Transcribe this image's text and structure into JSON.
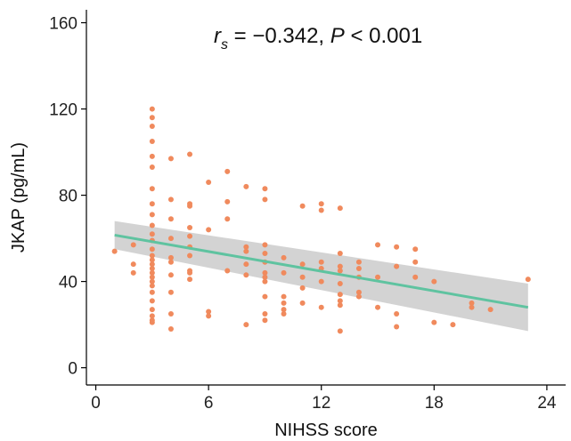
{
  "chart_data": {
    "type": "scatter",
    "title": "",
    "xlabel": "NIHSS score",
    "ylabel": "JKAP (pg/mL)",
    "xlim": [
      -0.5,
      25
    ],
    "ylim": [
      -8,
      166
    ],
    "x_ticks": [
      0,
      6,
      12,
      18,
      24
    ],
    "y_ticks": [
      0,
      40,
      80,
      120,
      160
    ],
    "x_tick_labels": [
      "0",
      "6",
      "12",
      "18",
      "24"
    ],
    "y_tick_labels": [
      "0",
      "40",
      "80",
      "120",
      "160"
    ],
    "grid": false,
    "legend": "none",
    "annotation": {
      "r_symbol": "r",
      "r_subscript": "s",
      "r_value": " = −0.342, ",
      "p_symbol": "P",
      "p_value": " < 0.001"
    },
    "colors": {
      "points": "#F08A5D",
      "fit_line": "#5FC3A0",
      "ci_band": "#D3D3D3",
      "axis": "#000000"
    },
    "fit": {
      "x": [
        1,
        23
      ],
      "y": [
        61.5,
        28
      ],
      "ci_lower": [
        55,
        17
      ],
      "ci_upper": [
        68,
        39
      ]
    },
    "points": [
      {
        "x": 1,
        "y": 54
      },
      {
        "x": 2,
        "y": 57
      },
      {
        "x": 2,
        "y": 48
      },
      {
        "x": 2,
        "y": 44
      },
      {
        "x": 3,
        "y": 120
      },
      {
        "x": 3,
        "y": 116
      },
      {
        "x": 3,
        "y": 112
      },
      {
        "x": 3,
        "y": 105
      },
      {
        "x": 3,
        "y": 98
      },
      {
        "x": 3,
        "y": 93
      },
      {
        "x": 3,
        "y": 83
      },
      {
        "x": 3,
        "y": 76
      },
      {
        "x": 3,
        "y": 71
      },
      {
        "x": 3,
        "y": 66
      },
      {
        "x": 3,
        "y": 62
      },
      {
        "x": 3,
        "y": 59
      },
      {
        "x": 3,
        "y": 55
      },
      {
        "x": 3,
        "y": 52
      },
      {
        "x": 3,
        "y": 50
      },
      {
        "x": 3,
        "y": 48
      },
      {
        "x": 3,
        "y": 46
      },
      {
        "x": 3,
        "y": 44
      },
      {
        "x": 3,
        "y": 42
      },
      {
        "x": 3,
        "y": 40
      },
      {
        "x": 3,
        "y": 38
      },
      {
        "x": 3,
        "y": 35
      },
      {
        "x": 3,
        "y": 31
      },
      {
        "x": 3,
        "y": 27
      },
      {
        "x": 3,
        "y": 24
      },
      {
        "x": 3,
        "y": 22
      },
      {
        "x": 3,
        "y": 21
      },
      {
        "x": 4,
        "y": 97
      },
      {
        "x": 4,
        "y": 78
      },
      {
        "x": 4,
        "y": 69
      },
      {
        "x": 4,
        "y": 60
      },
      {
        "x": 4,
        "y": 51
      },
      {
        "x": 4,
        "y": 49
      },
      {
        "x": 4,
        "y": 43
      },
      {
        "x": 4,
        "y": 35
      },
      {
        "x": 4,
        "y": 25
      },
      {
        "x": 4,
        "y": 18
      },
      {
        "x": 5,
        "y": 99
      },
      {
        "x": 5,
        "y": 76
      },
      {
        "x": 5,
        "y": 75
      },
      {
        "x": 5,
        "y": 65
      },
      {
        "x": 5,
        "y": 61
      },
      {
        "x": 5,
        "y": 56
      },
      {
        "x": 5,
        "y": 52
      },
      {
        "x": 5,
        "y": 45
      },
      {
        "x": 5,
        "y": 44
      },
      {
        "x": 5,
        "y": 41
      },
      {
        "x": 6,
        "y": 86
      },
      {
        "x": 6,
        "y": 64
      },
      {
        "x": 6,
        "y": 26
      },
      {
        "x": 6,
        "y": 24
      },
      {
        "x": 7,
        "y": 91
      },
      {
        "x": 7,
        "y": 77
      },
      {
        "x": 7,
        "y": 69
      },
      {
        "x": 7,
        "y": 45
      },
      {
        "x": 8,
        "y": 84
      },
      {
        "x": 8,
        "y": 56
      },
      {
        "x": 8,
        "y": 54
      },
      {
        "x": 8,
        "y": 48
      },
      {
        "x": 8,
        "y": 43
      },
      {
        "x": 8,
        "y": 20
      },
      {
        "x": 9,
        "y": 83
      },
      {
        "x": 9,
        "y": 78
      },
      {
        "x": 9,
        "y": 57
      },
      {
        "x": 9,
        "y": 53
      },
      {
        "x": 9,
        "y": 49
      },
      {
        "x": 9,
        "y": 44
      },
      {
        "x": 9,
        "y": 42
      },
      {
        "x": 9,
        "y": 40
      },
      {
        "x": 9,
        "y": 33
      },
      {
        "x": 9,
        "y": 25
      },
      {
        "x": 9,
        "y": 22
      },
      {
        "x": 10,
        "y": 51
      },
      {
        "x": 10,
        "y": 44
      },
      {
        "x": 10,
        "y": 33
      },
      {
        "x": 10,
        "y": 30
      },
      {
        "x": 10,
        "y": 27
      },
      {
        "x": 10,
        "y": 25
      },
      {
        "x": 11,
        "y": 75
      },
      {
        "x": 11,
        "y": 48
      },
      {
        "x": 11,
        "y": 42
      },
      {
        "x": 11,
        "y": 37
      },
      {
        "x": 11,
        "y": 30
      },
      {
        "x": 12,
        "y": 76
      },
      {
        "x": 12,
        "y": 73
      },
      {
        "x": 12,
        "y": 49
      },
      {
        "x": 12,
        "y": 46
      },
      {
        "x": 12,
        "y": 40
      },
      {
        "x": 12,
        "y": 28
      },
      {
        "x": 13,
        "y": 74
      },
      {
        "x": 13,
        "y": 53
      },
      {
        "x": 13,
        "y": 47
      },
      {
        "x": 13,
        "y": 45
      },
      {
        "x": 13,
        "y": 39
      },
      {
        "x": 13,
        "y": 34
      },
      {
        "x": 13,
        "y": 31
      },
      {
        "x": 13,
        "y": 29
      },
      {
        "x": 13,
        "y": 17
      },
      {
        "x": 14,
        "y": 49
      },
      {
        "x": 14,
        "y": 46
      },
      {
        "x": 14,
        "y": 42
      },
      {
        "x": 14,
        "y": 35
      },
      {
        "x": 14,
        "y": 33
      },
      {
        "x": 15,
        "y": 57
      },
      {
        "x": 15,
        "y": 42
      },
      {
        "x": 15,
        "y": 28
      },
      {
        "x": 16,
        "y": 56
      },
      {
        "x": 16,
        "y": 47
      },
      {
        "x": 16,
        "y": 25
      },
      {
        "x": 16,
        "y": 19
      },
      {
        "x": 17,
        "y": 55
      },
      {
        "x": 17,
        "y": 49
      },
      {
        "x": 17,
        "y": 42
      },
      {
        "x": 18,
        "y": 40
      },
      {
        "x": 18,
        "y": 21
      },
      {
        "x": 19,
        "y": 20
      },
      {
        "x": 20,
        "y": 30
      },
      {
        "x": 20,
        "y": 28
      },
      {
        "x": 21,
        "y": 27
      },
      {
        "x": 23,
        "y": 41
      }
    ]
  }
}
